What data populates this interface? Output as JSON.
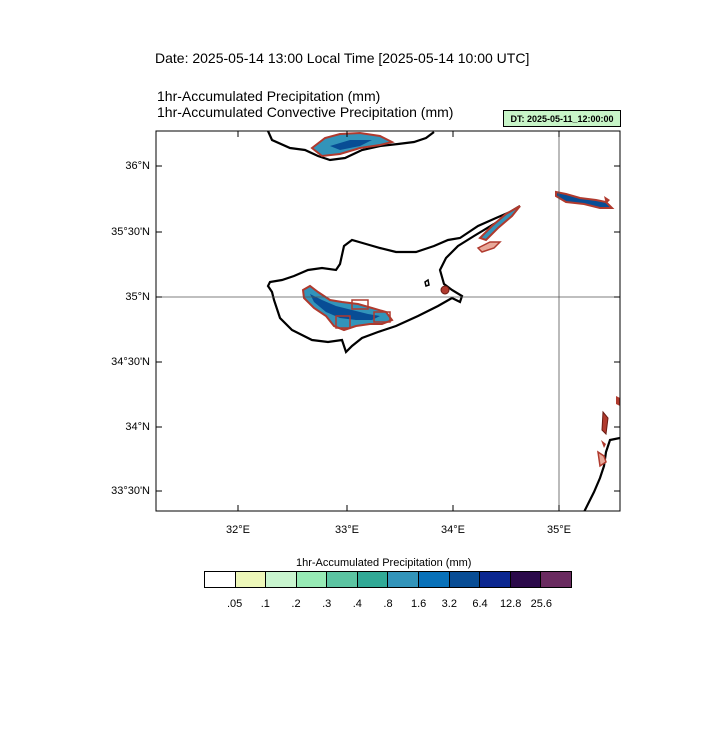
{
  "header": {
    "date_line": "Date: 2025-05-14  13:00 Local Time [2025-05-14  10:00 UTC]",
    "title_1": "1hr-Accumulated Precipitation   (mm)",
    "title_2": "1hr-Accumulated Convective Precipitation   (mm)",
    "dt_badge": "DT: 2025-05-11_12:00:00",
    "dt_badge_color": "#c8f5c8"
  },
  "map": {
    "lat_labels": [
      "36°N",
      "35°30'N",
      "35°N",
      "34°30'N",
      "34°N",
      "33°30'N"
    ],
    "lon_labels": [
      "32°E",
      "33°E",
      "34°E",
      "35°E"
    ],
    "reference_lines": [
      "35°N",
      "35°E"
    ]
  },
  "colorbar": {
    "title": "1hr-Accumulated Precipitation  (mm)",
    "colors": [
      "#ffffff",
      "#edf7b9",
      "#c9f5cf",
      "#97eab5",
      "#5cc4a2",
      "#31a996",
      "#3294ba",
      "#0871b9",
      "#084d95",
      "#0b2790",
      "#2b0a4a",
      "#6a2b60"
    ],
    "ticks": [
      ".05",
      ".1",
      ".2",
      ".3",
      ".4",
      ".8",
      "1.6",
      "3.2",
      "6.4",
      "12.8",
      "25.6"
    ]
  }
}
